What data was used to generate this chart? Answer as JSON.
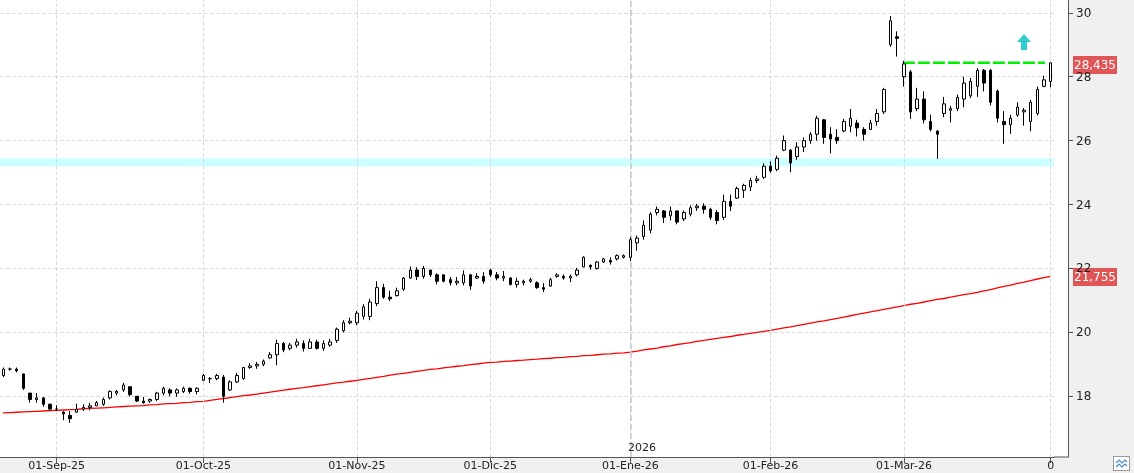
{
  "chart_data": {
    "type": "candlestick",
    "categories": [
      null,
      null,
      null,
      null,
      null,
      null,
      null,
      null,
      "01-Sep-25",
      null,
      null,
      null,
      null,
      null,
      null,
      null,
      null,
      null,
      null,
      null,
      null,
      null,
      null,
      null,
      null,
      null,
      null,
      null,
      null,
      null,
      "01-Oct-25",
      null,
      null,
      null,
      null,
      null,
      null,
      null,
      null,
      null,
      null,
      null,
      null,
      null,
      null,
      null,
      null,
      null,
      null,
      null,
      null,
      null,
      null,
      "01-Nov-25",
      null,
      null,
      null,
      null,
      null,
      null,
      null,
      null,
      null,
      null,
      null,
      null,
      null,
      null,
      null,
      null,
      null,
      null,
      null,
      "01-Dic-25",
      null,
      null,
      null,
      null,
      null,
      null,
      null,
      null,
      null,
      null,
      null,
      null,
      null,
      null,
      null,
      null,
      null,
      null,
      null,
      null,
      "01-Ene-26",
      null,
      null,
      null,
      null,
      null,
      null,
      null,
      null,
      null,
      null,
      null,
      null,
      null,
      null,
      null,
      null,
      null,
      null,
      null,
      null,
      "01-Feb-26",
      null,
      null,
      null,
      null,
      null,
      null,
      null,
      null,
      null,
      null,
      null,
      null,
      null,
      null,
      null,
      null,
      null,
      null,
      null,
      "01-Mar-26",
      null,
      null,
      null,
      null,
      null,
      null,
      null,
      null,
      null,
      null,
      null,
      null,
      null,
      null,
      null,
      null,
      null,
      null,
      null,
      null,
      null,
      "0"
    ],
    "ohlc": [
      [
        18.65,
        18.9,
        18.6,
        18.85
      ],
      [
        18.85,
        18.9,
        18.8,
        18.85
      ],
      [
        18.85,
        18.9,
        18.75,
        18.8
      ],
      [
        18.7,
        18.7,
        18.2,
        18.25
      ],
      [
        18.1,
        18.1,
        17.8,
        17.9
      ],
      [
        17.9,
        18.1,
        17.8,
        17.95
      ],
      [
        17.95,
        17.98,
        17.67,
        17.75
      ],
      [
        17.75,
        17.77,
        17.54,
        17.6
      ],
      [
        17.6,
        17.72,
        17.54,
        17.6
      ],
      [
        17.5,
        17.54,
        17.25,
        17.45
      ],
      [
        17.4,
        17.54,
        17.17,
        17.3
      ],
      [
        17.5,
        17.77,
        17.5,
        17.6
      ],
      [
        17.6,
        17.75,
        17.54,
        17.65
      ],
      [
        17.65,
        17.79,
        17.56,
        17.7
      ],
      [
        17.7,
        17.85,
        17.7,
        17.8
      ],
      [
        17.75,
        17.96,
        17.7,
        17.9
      ],
      [
        17.95,
        18.19,
        17.9,
        18.15
      ],
      [
        18.1,
        18.2,
        18.03,
        18.15
      ],
      [
        18.2,
        18.42,
        18.14,
        18.35
      ],
      [
        18.3,
        18.3,
        18.0,
        18.05
      ],
      [
        18.0,
        18.0,
        17.82,
        17.85
      ],
      [
        17.85,
        17.98,
        17.77,
        17.8
      ],
      [
        17.85,
        17.93,
        17.8,
        17.9
      ],
      [
        17.9,
        18.14,
        17.85,
        18.1
      ],
      [
        18.1,
        18.3,
        18.03,
        18.25
      ],
      [
        18.2,
        18.25,
        18.0,
        18.1
      ],
      [
        18.1,
        18.25,
        17.98,
        18.2
      ],
      [
        18.15,
        18.3,
        18.1,
        18.25
      ],
      [
        18.25,
        18.28,
        18.08,
        18.15
      ],
      [
        18.15,
        18.28,
        18.06,
        18.25
      ],
      [
        18.5,
        18.7,
        18.48,
        18.65
      ],
      [
        18.55,
        18.6,
        18.42,
        18.55
      ],
      [
        18.55,
        18.7,
        18.5,
        18.65
      ],
      [
        18.6,
        18.67,
        17.8,
        18.0
      ],
      [
        18.2,
        18.5,
        18.17,
        18.45
      ],
      [
        18.45,
        18.73,
        18.42,
        18.65
      ],
      [
        18.55,
        18.92,
        18.52,
        18.9
      ],
      [
        18.9,
        19.04,
        18.86,
        18.95
      ],
      [
        18.95,
        19.07,
        18.86,
        19.0
      ],
      [
        19.0,
        19.15,
        18.94,
        19.1
      ],
      [
        19.2,
        19.38,
        19.18,
        19.3
      ],
      [
        19.3,
        19.77,
        18.97,
        19.65
      ],
      [
        19.65,
        19.7,
        19.38,
        19.45
      ],
      [
        19.5,
        19.67,
        19.44,
        19.6
      ],
      [
        19.6,
        19.8,
        19.52,
        19.7
      ],
      [
        19.65,
        19.75,
        19.4,
        19.5
      ],
      [
        19.5,
        19.8,
        19.48,
        19.7
      ],
      [
        19.7,
        19.77,
        19.46,
        19.5
      ],
      [
        19.5,
        19.75,
        19.42,
        19.65
      ],
      [
        19.6,
        19.8,
        19.55,
        19.7
      ],
      [
        19.75,
        20.15,
        19.67,
        20.1
      ],
      [
        20.05,
        20.38,
        20.0,
        20.3
      ],
      [
        20.3,
        20.46,
        20.25,
        20.35
      ],
      [
        20.3,
        20.67,
        20.22,
        20.6
      ],
      [
        20.5,
        20.88,
        20.4,
        20.8
      ],
      [
        20.5,
        21.05,
        20.38,
        20.95
      ],
      [
        20.9,
        21.6,
        20.82,
        21.4
      ],
      [
        21.4,
        21.52,
        21.05,
        21.1
      ],
      [
        21.1,
        21.3,
        20.98,
        21.05
      ],
      [
        21.15,
        21.4,
        21.12,
        21.3
      ],
      [
        21.35,
        21.73,
        21.3,
        21.7
      ],
      [
        21.7,
        22.06,
        21.68,
        21.95
      ],
      [
        21.95,
        22.04,
        21.64,
        21.75
      ],
      [
        21.75,
        22.08,
        21.68,
        22.0
      ],
      [
        21.95,
        21.96,
        21.73,
        21.8
      ],
      [
        21.8,
        21.85,
        21.5,
        21.6
      ],
      [
        21.8,
        21.81,
        21.57,
        21.6
      ],
      [
        21.65,
        21.73,
        21.47,
        21.55
      ],
      [
        21.55,
        21.73,
        21.47,
        21.6
      ],
      [
        21.55,
        21.94,
        21.47,
        21.8
      ],
      [
        21.8,
        21.83,
        21.33,
        21.45
      ],
      [
        21.7,
        21.85,
        21.67,
        21.75
      ],
      [
        21.75,
        21.88,
        21.52,
        21.6
      ],
      [
        21.95,
        21.99,
        21.73,
        21.8
      ],
      [
        21.8,
        21.89,
        21.63,
        21.7
      ],
      [
        21.7,
        21.92,
        21.6,
        21.75
      ],
      [
        21.7,
        21.73,
        21.47,
        21.5
      ],
      [
        21.5,
        21.71,
        21.4,
        21.6
      ],
      [
        21.55,
        21.65,
        21.47,
        21.6
      ],
      [
        21.6,
        21.71,
        21.55,
        21.65
      ],
      [
        21.55,
        21.6,
        21.36,
        21.4
      ],
      [
        21.4,
        21.54,
        21.26,
        21.35
      ],
      [
        21.45,
        21.71,
        21.42,
        21.65
      ],
      [
        21.75,
        21.85,
        21.71,
        21.8
      ],
      [
        21.75,
        21.81,
        21.65,
        21.7
      ],
      [
        21.7,
        21.81,
        21.57,
        21.75
      ],
      [
        21.8,
        22.02,
        21.75,
        21.95
      ],
      [
        22.05,
        22.38,
        22.04,
        22.35
      ],
      [
        22.1,
        22.12,
        21.96,
        22.05
      ],
      [
        22.0,
        22.23,
        21.96,
        22.2
      ],
      [
        22.2,
        22.33,
        22.17,
        22.3
      ],
      [
        22.25,
        22.35,
        22.12,
        22.2
      ],
      [
        22.3,
        22.44,
        22.25,
        22.4
      ],
      [
        22.35,
        22.44,
        22.31,
        22.4
      ],
      [
        22.35,
        22.98,
        22.23,
        22.9
      ],
      [
        22.8,
        23.03,
        22.56,
        22.95
      ],
      [
        23.0,
        23.5,
        22.9,
        23.35
      ],
      [
        23.2,
        23.76,
        23.1,
        23.7
      ],
      [
        23.75,
        23.94,
        23.66,
        23.85
      ],
      [
        23.8,
        23.83,
        23.42,
        23.6
      ],
      [
        23.65,
        23.94,
        23.5,
        23.8
      ],
      [
        23.8,
        23.81,
        23.38,
        23.45
      ],
      [
        23.55,
        23.81,
        23.48,
        23.75
      ],
      [
        23.7,
        23.97,
        23.63,
        23.9
      ],
      [
        23.9,
        24.02,
        23.8,
        23.95
      ],
      [
        23.95,
        24.04,
        23.71,
        23.85
      ],
      [
        23.85,
        23.9,
        23.52,
        23.6
      ],
      [
        23.75,
        23.83,
        23.38,
        23.5
      ],
      [
        23.6,
        24.31,
        23.52,
        24.1
      ],
      [
        24.1,
        24.31,
        23.79,
        23.95
      ],
      [
        24.2,
        24.56,
        24.18,
        24.5
      ],
      [
        24.45,
        24.65,
        24.21,
        24.6
      ],
      [
        24.55,
        24.83,
        24.42,
        24.75
      ],
      [
        24.75,
        24.9,
        24.67,
        24.8
      ],
      [
        24.85,
        25.29,
        24.8,
        25.2
      ],
      [
        25.2,
        25.35,
        25.0,
        25.05
      ],
      [
        25.1,
        25.53,
        25.04,
        25.45
      ],
      [
        25.7,
        26.16,
        25.67,
        26.0
      ],
      [
        25.7,
        25.74,
        25.01,
        25.3
      ],
      [
        25.5,
        25.95,
        25.4,
        25.8
      ],
      [
        25.8,
        26.1,
        25.64,
        26.0
      ],
      [
        26.0,
        26.26,
        25.9,
        26.2
      ],
      [
        26.2,
        26.78,
        26.0,
        26.7
      ],
      [
        26.65,
        26.68,
        25.9,
        26.1
      ],
      [
        26.2,
        26.42,
        25.6,
        26.05
      ],
      [
        26.1,
        26.36,
        25.9,
        26.0
      ],
      [
        26.3,
        26.68,
        26.26,
        26.6
      ],
      [
        26.45,
        26.99,
        26.26,
        26.7
      ],
      [
        26.55,
        26.65,
        26.13,
        26.4
      ],
      [
        26.35,
        26.42,
        26.0,
        26.2
      ],
      [
        26.35,
        26.65,
        26.33,
        26.55
      ],
      [
        26.6,
        26.99,
        26.47,
        26.85
      ],
      [
        26.9,
        27.65,
        26.83,
        27.6
      ],
      [
        29.0,
        29.9,
        28.94,
        29.75
      ],
      [
        29.25,
        29.42,
        28.63,
        29.2
      ],
      [
        28.0,
        28.5,
        27.69,
        28.4
      ],
      [
        28.15,
        28.21,
        26.68,
        26.9
      ],
      [
        27.0,
        27.65,
        26.92,
        27.3
      ],
      [
        27.3,
        27.54,
        26.54,
        26.65
      ],
      [
        26.6,
        26.81,
        26.29,
        26.35
      ],
      [
        26.3,
        26.33,
        25.43,
        26.2
      ],
      [
        26.85,
        27.37,
        26.73,
        27.15
      ],
      [
        26.95,
        27.09,
        26.57,
        27.0
      ],
      [
        27.0,
        27.44,
        26.92,
        27.35
      ],
      [
        27.3,
        28.0,
        27.04,
        27.8
      ],
      [
        27.4,
        27.96,
        27.33,
        27.85
      ],
      [
        27.7,
        28.27,
        27.37,
        28.2
      ],
      [
        28.2,
        28.24,
        27.54,
        27.8
      ],
      [
        28.2,
        28.24,
        27.1,
        27.2
      ],
      [
        27.55,
        27.6,
        26.57,
        26.7
      ],
      [
        26.6,
        26.92,
        25.9,
        26.5
      ],
      [
        26.5,
        26.81,
        26.21,
        26.7
      ],
      [
        26.8,
        27.2,
        26.75,
        27.05
      ],
      [
        26.9,
        27.02,
        26.47,
        26.95
      ],
      [
        26.6,
        27.27,
        26.29,
        27.2
      ],
      [
        26.85,
        27.69,
        26.78,
        27.6
      ],
      [
        27.7,
        28.03,
        27.67,
        27.9
      ],
      [
        27.85,
        28.45,
        27.67,
        28.435
      ]
    ],
    "color": "#000000",
    "series": [
      {
        "type": "line",
        "color": "#ff0000",
        "values": [
          17.48,
          17.49,
          17.5,
          17.51,
          17.52,
          17.53,
          17.54,
          17.55,
          17.56,
          17.57,
          17.58,
          17.59,
          17.61,
          17.62,
          17.63,
          17.64,
          17.65,
          17.67,
          17.68,
          17.69,
          17.7,
          17.71,
          17.73,
          17.74,
          17.76,
          17.77,
          17.78,
          17.8,
          17.81,
          17.83,
          17.84,
          17.87,
          17.9,
          17.93,
          17.96,
          17.99,
          18.02,
          18.04,
          18.07,
          18.1,
          18.13,
          18.16,
          18.19,
          18.22,
          18.25,
          18.27,
          18.3,
          18.33,
          18.36,
          18.39,
          18.42,
          18.44,
          18.47,
          18.5,
          18.53,
          18.56,
          18.59,
          18.62,
          18.66,
          18.69,
          18.72,
          18.75,
          18.78,
          18.81,
          18.84,
          18.86,
          18.89,
          18.91,
          18.94,
          18.96,
          18.99,
          19.01,
          19.04,
          19.06,
          19.07,
          19.09,
          19.1,
          19.12,
          19.13,
          19.15,
          19.16,
          19.18,
          19.19,
          19.21,
          19.22,
          19.24,
          19.25,
          19.27,
          19.28,
          19.3,
          19.32,
          19.33,
          19.35,
          19.36,
          19.38,
          19.41,
          19.45,
          19.48,
          19.51,
          19.55,
          19.58,
          19.62,
          19.65,
          19.68,
          19.72,
          19.75,
          19.78,
          19.81,
          19.84,
          19.87,
          19.91,
          19.94,
          19.97,
          20.0,
          20.03,
          20.06,
          20.1,
          20.14,
          20.17,
          20.21,
          20.25,
          20.29,
          20.33,
          20.36,
          20.4,
          20.44,
          20.48,
          20.52,
          20.56,
          20.6,
          20.64,
          20.68,
          20.72,
          20.76,
          20.8,
          20.84,
          20.88,
          20.91,
          20.95,
          20.99,
          21.03,
          21.06,
          21.1,
          21.14,
          21.18,
          21.21,
          21.25,
          21.3,
          21.34,
          21.39,
          21.44,
          21.48,
          21.53,
          21.57,
          21.62,
          21.67,
          21.71,
          21.755
        ]
      },
      {
        "type": "line",
        "color": "#00ee00",
        "line_style": "dashed",
        "values": [
          null,
          null,
          null,
          null,
          null,
          null,
          null,
          null,
          null,
          null,
          null,
          null,
          null,
          null,
          null,
          null,
          null,
          null,
          null,
          null,
          null,
          null,
          null,
          null,
          null,
          null,
          null,
          null,
          null,
          null,
          null,
          null,
          null,
          null,
          null,
          null,
          null,
          null,
          null,
          null,
          null,
          null,
          null,
          null,
          null,
          null,
          null,
          null,
          null,
          null,
          null,
          null,
          null,
          null,
          null,
          null,
          null,
          null,
          null,
          null,
          null,
          null,
          null,
          null,
          null,
          null,
          null,
          null,
          null,
          null,
          null,
          null,
          null,
          null,
          null,
          null,
          null,
          null,
          null,
          null,
          null,
          null,
          null,
          null,
          null,
          null,
          null,
          null,
          null,
          null,
          null,
          null,
          null,
          null,
          null,
          null,
          null,
          null,
          null,
          null,
          null,
          null,
          null,
          null,
          null,
          null,
          null,
          null,
          null,
          null,
          null,
          null,
          null,
          null,
          null,
          null,
          null,
          null,
          null,
          null,
          null,
          null,
          null,
          null,
          null,
          null,
          null,
          null,
          null,
          null,
          null,
          null,
          null,
          null,
          null,
          28.435,
          28.435,
          28.435,
          28.435,
          28.435,
          28.435,
          28.435,
          28.435,
          28.435,
          28.435,
          28.435,
          28.435,
          28.435,
          28.435,
          28.435,
          28.435,
          28.435,
          28.435,
          28.435,
          28.435,
          28.435,
          28.435,
          null
        ]
      }
    ],
    "ylim": [
      16.1,
      30.4
    ],
    "yticks": [
      18,
      20,
      22,
      24,
      26,
      28,
      30
    ],
    "grid": true,
    "ref_lines": [
      {
        "axis": "x",
        "value": "01-Ene-26",
        "color": "#c8c8c8",
        "line_style": "dashed"
      }
    ],
    "bands": [
      {
        "axis": "y",
        "from": 25.2,
        "to": 25.45,
        "color": "#ccffff"
      }
    ],
    "annotations": [
      "2026",
      "28,435",
      "21,755"
    ]
  }
}
